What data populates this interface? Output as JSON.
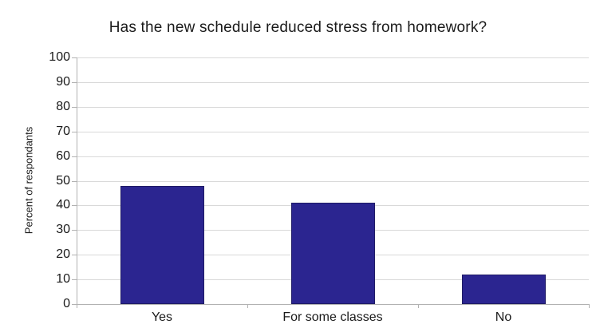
{
  "chart_data": {
    "type": "bar",
    "title": "Has the new schedule reduced stress from homework?",
    "categories": [
      "Yes",
      "For some classes",
      "No"
    ],
    "values": [
      48,
      41,
      12
    ],
    "xlabel": "",
    "ylabel": "Percent of respondants",
    "ylim": [
      0,
      100
    ],
    "yticks": [
      0,
      10,
      20,
      30,
      40,
      50,
      60,
      70,
      80,
      90,
      100
    ],
    "grid": true,
    "legend": "none",
    "colors": {
      "bar_fill": "#2b2590",
      "bar_border": "#1f1b66",
      "gridline": "#d9d9d9",
      "axis": "#b2b2b2",
      "text": "#1a1a1a",
      "background": "#ffffff"
    }
  }
}
